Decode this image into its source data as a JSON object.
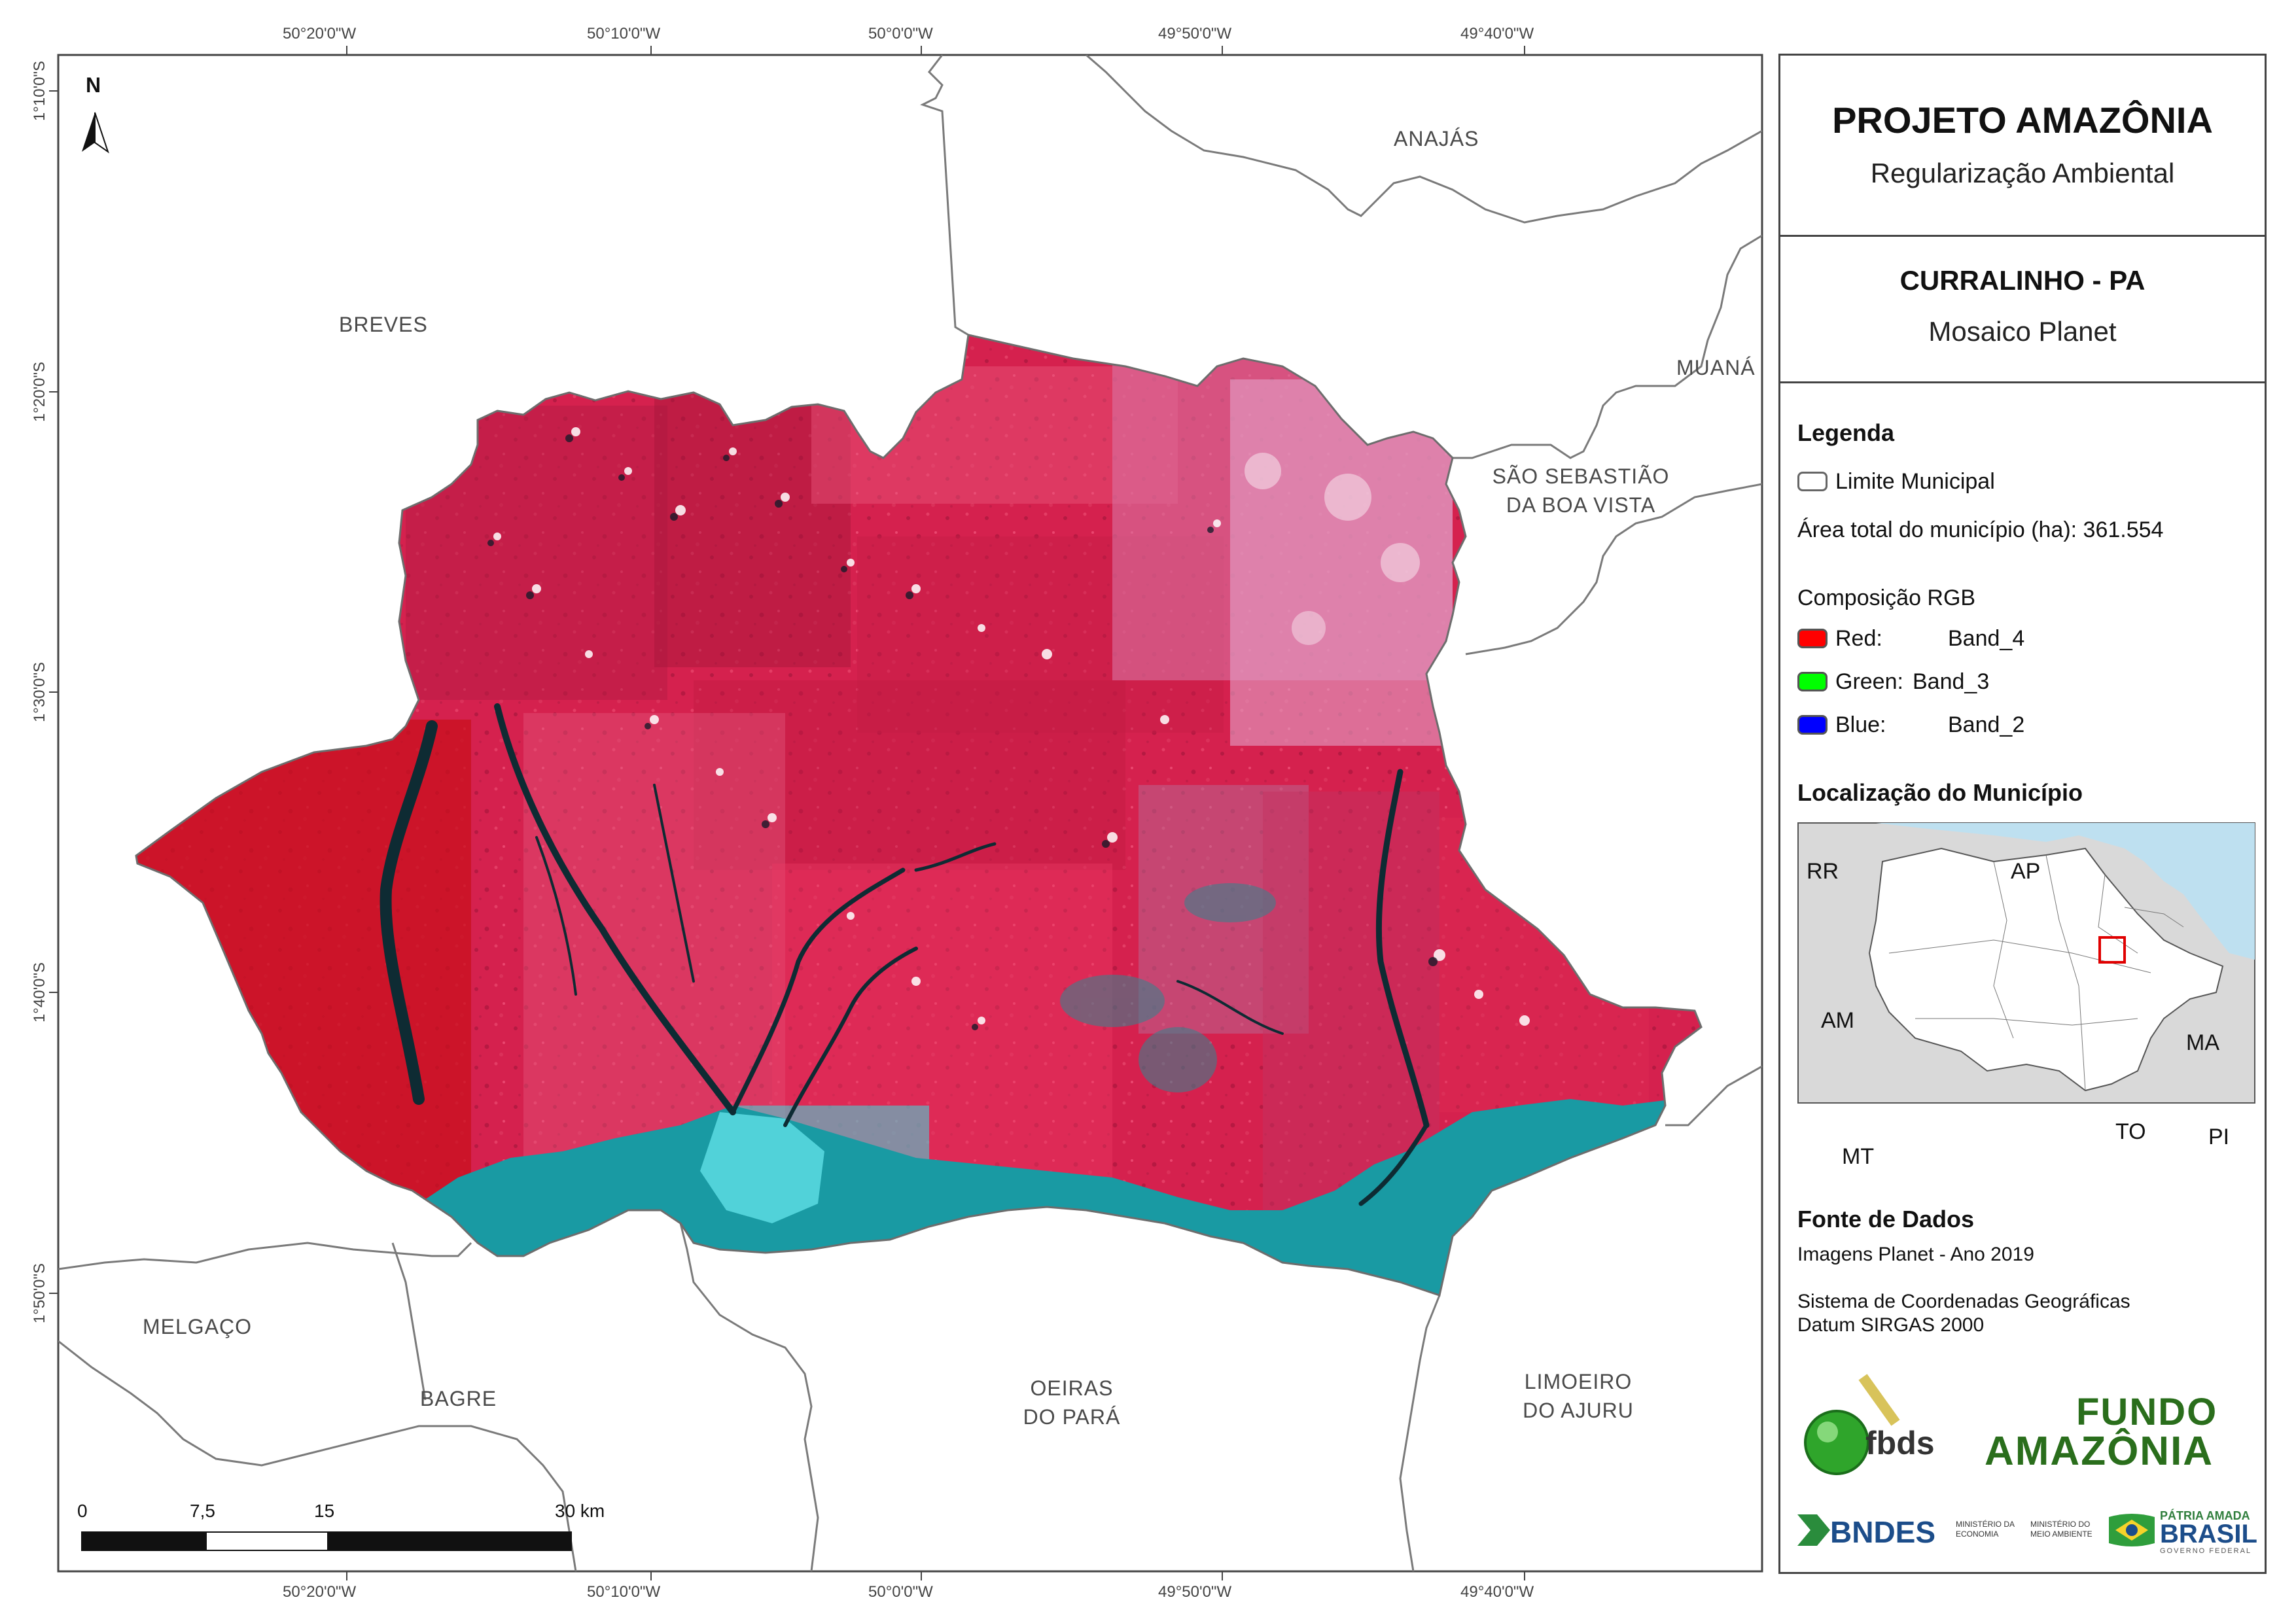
{
  "title": "PROJETO AMAZÔNIA",
  "subtitle": "Regularização Ambiental",
  "municipality": "CURRALINHO - PA",
  "mosaic": "Mosaico Planet",
  "legend": {
    "heading": "Legenda",
    "boundary_label": "Limite Municipal",
    "area_label": "Área total do município (ha): 361.554",
    "rgb_heading": "Composição RGB",
    "bands": [
      {
        "label": "Red:",
        "value": "Band_4",
        "color": "#ff0000"
      },
      {
        "label": "Green:",
        "value": "Band_3",
        "color": "#00ff00"
      },
      {
        "label": "Blue:",
        "value": "Band_2",
        "color": "#0000ff"
      }
    ]
  },
  "location": {
    "heading": "Localização do Município",
    "labels": [
      "RR",
      "AP",
      "AM",
      "MA",
      "TO",
      "PI",
      "MT"
    ]
  },
  "sources": {
    "heading": "Fonte de Dados",
    "imagery": "Imagens Planet - Ano 2019",
    "crs_line1": "Sistema de Coordenadas Geográficas",
    "crs_line2": "Datum SIRGAS 2000"
  },
  "logos": {
    "fbds": "fbds",
    "fundo_line1": "FUNDO",
    "fundo_line2": "AMAZÔNIA",
    "bndes": "BNDES",
    "min_economia": "MINISTÉRIO DA ECONOMIA",
    "min_ambiente": "MINISTÉRIO DO MEIO AMBIENTE",
    "patria": "PÁTRIA AMADA",
    "brasil": "BRASIL",
    "governo": "GOVERNO FEDERAL"
  },
  "graticule": {
    "top": [
      "50°20'0\"W",
      "50°10'0\"W",
      "50°0'0\"W",
      "49°50'0\"W",
      "49°40'0\"W"
    ],
    "bottom": [
      "50°20'0\"W",
      "50°10'0\"W",
      "50°0'0\"W",
      "49°50'0\"W",
      "49°40'0\"W"
    ],
    "left": [
      "1°10'0\"S",
      "1°20'0\"S",
      "1°30'0\"S",
      "1°40'0\"S",
      "1°50'0\"S"
    ]
  },
  "municipalities": {
    "anajas": "ANAJÁS",
    "breves": "BREVES",
    "muana": "MUANÁ",
    "sao_sebastiao_1": "SÃO SEBASTIÃO",
    "sao_sebastiao_2": "DA BOA VISTA",
    "melgaco": "MELGAÇO",
    "bagre": "BAGRE",
    "oeiras_1": "OEIRAS",
    "oeiras_2": "DO PARÁ",
    "limoeiro_1": "LIMOEIRO",
    "limoeiro_2": "DO AJURU"
  },
  "scalebar": {
    "ticks": [
      "0",
      "7,5",
      "15",
      "30 km"
    ]
  },
  "north_arrow": "N"
}
